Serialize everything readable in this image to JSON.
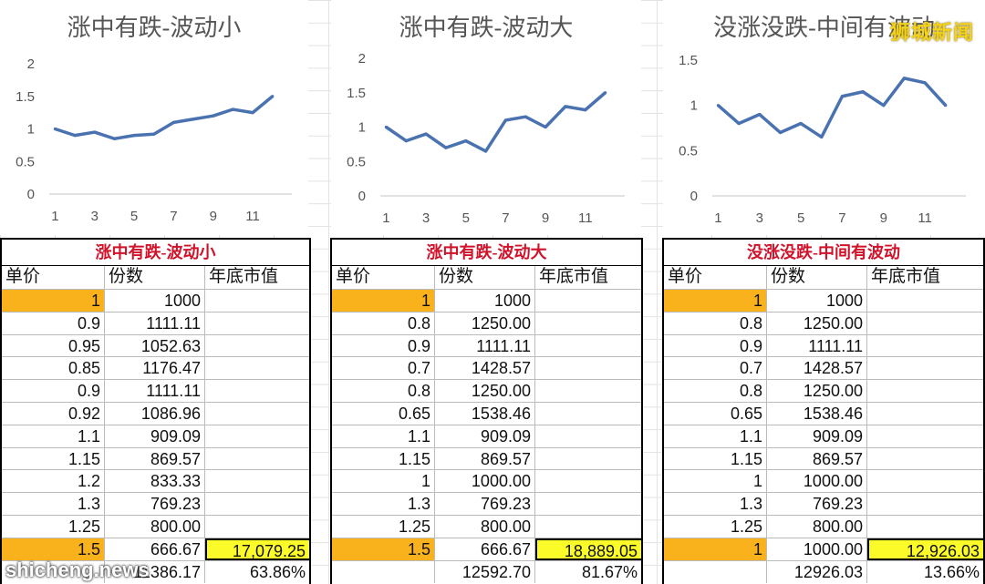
{
  "chart_data": [
    {
      "type": "line",
      "title": "涨中有跌-波动小",
      "x": [
        1,
        2,
        3,
        4,
        5,
        6,
        7,
        8,
        9,
        10,
        11,
        12
      ],
      "values": [
        1,
        0.9,
        0.95,
        0.85,
        0.9,
        0.92,
        1.1,
        1.15,
        1.2,
        1.3,
        1.25,
        1.5
      ],
      "ylim": [
        0,
        2
      ],
      "yticks": [
        "0",
        "0.5",
        "1",
        "1.5",
        "2"
      ],
      "xticks": [
        "1",
        "3",
        "5",
        "7",
        "9",
        "11"
      ],
      "color": "#4a72b0"
    },
    {
      "type": "line",
      "title": "涨中有跌-波动大",
      "x": [
        1,
        2,
        3,
        4,
        5,
        6,
        7,
        8,
        9,
        10,
        11,
        12
      ],
      "values": [
        1,
        0.8,
        0.9,
        0.7,
        0.8,
        0.65,
        1.1,
        1.15,
        1,
        1.3,
        1.25,
        1.5
      ],
      "ylim": [
        0,
        2
      ],
      "yticks": [
        "0",
        "0.5",
        "1",
        "1.5",
        "2"
      ],
      "xticks": [
        "1",
        "3",
        "5",
        "7",
        "9",
        "11"
      ],
      "color": "#4a72b0"
    },
    {
      "type": "line",
      "title": "没涨没跌-中间有波动",
      "x": [
        1,
        2,
        3,
        4,
        5,
        6,
        7,
        8,
        9,
        10,
        11,
        12
      ],
      "values": [
        1,
        0.8,
        0.9,
        0.7,
        0.8,
        0.65,
        1.1,
        1.15,
        1,
        1.3,
        1.25,
        1
      ],
      "ylim": [
        0,
        1.5
      ],
      "yticks": [
        "0",
        "0.5",
        "1",
        "1.5"
      ],
      "xticks": [
        "1",
        "3",
        "5",
        "7",
        "9",
        "11"
      ],
      "color": "#4a72b0"
    }
  ],
  "tables": [
    {
      "title": "涨中有跌-波动小",
      "headers": [
        "单价",
        "份数",
        "年底市值"
      ],
      "rows": [
        [
          "1",
          "1000",
          ""
        ],
        [
          "0.9",
          "1111.11",
          ""
        ],
        [
          "0.95",
          "1052.63",
          ""
        ],
        [
          "0.85",
          "1176.47",
          ""
        ],
        [
          "0.9",
          "1111.11",
          ""
        ],
        [
          "0.92",
          "1086.96",
          ""
        ],
        [
          "1.1",
          "909.09",
          ""
        ],
        [
          "1.15",
          "869.57",
          ""
        ],
        [
          "1.2",
          "833.33",
          ""
        ],
        [
          "1.3",
          "769.23",
          ""
        ],
        [
          "1.25",
          "800.00",
          ""
        ],
        [
          "1.5",
          "666.67",
          "17,079.25"
        ],
        [
          "",
          "11386.17",
          "63.86%"
        ]
      ]
    },
    {
      "title": "涨中有跌-波动大",
      "headers": [
        "单价",
        "份数",
        "年底市值"
      ],
      "rows": [
        [
          "1",
          "1000",
          ""
        ],
        [
          "0.8",
          "1250.00",
          ""
        ],
        [
          "0.9",
          "1111.11",
          ""
        ],
        [
          "0.7",
          "1428.57",
          ""
        ],
        [
          "0.8",
          "1250.00",
          ""
        ],
        [
          "0.65",
          "1538.46",
          ""
        ],
        [
          "1.1",
          "909.09",
          ""
        ],
        [
          "1.15",
          "869.57",
          ""
        ],
        [
          "1",
          "1000.00",
          ""
        ],
        [
          "1.3",
          "769.23",
          ""
        ],
        [
          "1.25",
          "800.00",
          ""
        ],
        [
          "1.5",
          "666.67",
          "18,889.05"
        ],
        [
          "",
          "12592.70",
          "81.67%"
        ]
      ]
    },
    {
      "title": "没涨没跌-中间有波动",
      "headers": [
        "单价",
        "份数",
        "年底市值"
      ],
      "rows": [
        [
          "1",
          "1000",
          ""
        ],
        [
          "0.8",
          "1250.00",
          ""
        ],
        [
          "0.9",
          "1111.11",
          ""
        ],
        [
          "0.7",
          "1428.57",
          ""
        ],
        [
          "0.8",
          "1250.00",
          ""
        ],
        [
          "0.65",
          "1538.46",
          ""
        ],
        [
          "1.1",
          "909.09",
          ""
        ],
        [
          "1.15",
          "869.57",
          ""
        ],
        [
          "1",
          "1000.00",
          ""
        ],
        [
          "1.3",
          "769.23",
          ""
        ],
        [
          "1.25",
          "800.00",
          ""
        ],
        [
          "1",
          "1000.00",
          "12,926.03"
        ],
        [
          "",
          "12926.03",
          "13.66%"
        ]
      ]
    }
  ],
  "watermark": {
    "top_right": "狮城新闻",
    "bottom_left": "shicheng.news"
  }
}
